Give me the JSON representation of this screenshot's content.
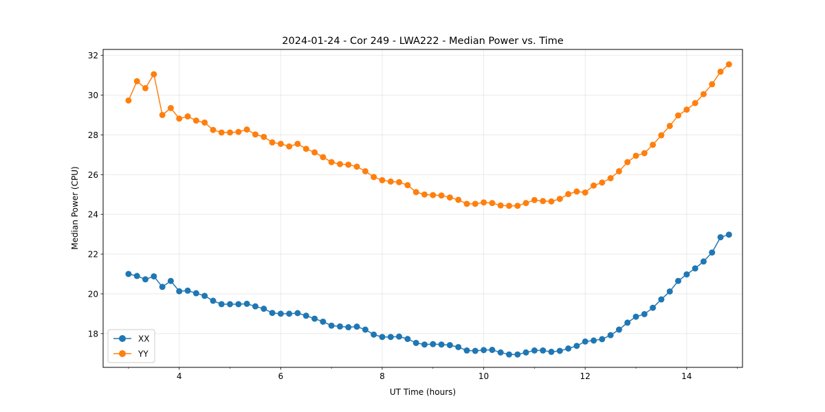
{
  "chart_data": {
    "type": "line",
    "title": "2024-01-24 - Cor 249 - LWA222 - Median Power vs. Time",
    "xlabel": "UT Time (hours)",
    "ylabel": "Median Power (CPU)",
    "xlim": [
      2.5,
      15.1
    ],
    "ylim": [
      16.3,
      32.3
    ],
    "xticks": [
      4,
      6,
      8,
      10,
      12,
      14
    ],
    "xtick_labels": [
      "4",
      "6",
      "8",
      "10",
      "12",
      "14"
    ],
    "yticks": [
      18,
      20,
      22,
      24,
      26,
      28,
      30,
      32
    ],
    "ytick_labels": [
      "18",
      "20",
      "22",
      "24",
      "26",
      "28",
      "30",
      "32"
    ],
    "grid": true,
    "legend_position": "lower-left",
    "x": [
      3.0,
      3.167,
      3.333,
      3.5,
      3.667,
      3.833,
      4.0,
      4.167,
      4.333,
      4.5,
      4.667,
      4.833,
      5.0,
      5.167,
      5.333,
      5.5,
      5.667,
      5.833,
      6.0,
      6.167,
      6.333,
      6.5,
      6.667,
      6.833,
      7.0,
      7.167,
      7.333,
      7.5,
      7.667,
      7.833,
      8.0,
      8.167,
      8.333,
      8.5,
      8.667,
      8.833,
      9.0,
      9.167,
      9.333,
      9.5,
      9.667,
      9.833,
      10.0,
      10.167,
      10.333,
      10.5,
      10.667,
      10.833,
      11.0,
      11.167,
      11.333,
      11.5,
      11.667,
      11.833,
      12.0,
      12.167,
      12.333,
      12.5,
      12.667,
      12.833,
      13.0,
      13.167,
      13.333,
      13.5,
      13.667,
      13.833,
      14.0,
      14.167,
      14.333,
      14.5,
      14.667,
      14.833
    ],
    "series": [
      {
        "name": "XX",
        "color": "#1f77b4",
        "values": [
          21.0,
          20.9,
          20.73,
          20.88,
          20.35,
          20.65,
          20.13,
          20.16,
          20.03,
          19.9,
          19.65,
          19.48,
          19.48,
          19.48,
          19.5,
          19.37,
          19.25,
          19.04,
          19.0,
          19.0,
          19.03,
          18.9,
          18.75,
          18.6,
          18.4,
          18.36,
          18.32,
          18.35,
          18.2,
          17.95,
          17.83,
          17.83,
          17.85,
          17.73,
          17.53,
          17.45,
          17.47,
          17.45,
          17.42,
          17.32,
          17.15,
          17.13,
          17.17,
          17.18,
          17.05,
          16.95,
          16.95,
          17.05,
          17.15,
          17.15,
          17.08,
          17.13,
          17.25,
          17.38,
          17.6,
          17.65,
          17.72,
          17.92,
          18.2,
          18.55,
          18.85,
          18.98,
          19.3,
          19.72,
          20.12,
          20.65,
          20.98,
          21.28,
          21.63,
          22.08,
          22.85,
          22.98
        ]
      },
      {
        "name": "YY",
        "color": "#ff7f0e",
        "values": [
          29.73,
          30.7,
          30.35,
          31.05,
          29.0,
          29.35,
          28.82,
          28.93,
          28.72,
          28.62,
          28.25,
          28.12,
          28.12,
          28.15,
          28.27,
          28.02,
          27.9,
          27.62,
          27.55,
          27.42,
          27.55,
          27.3,
          27.12,
          26.88,
          26.63,
          26.53,
          26.5,
          26.4,
          26.17,
          25.88,
          25.72,
          25.65,
          25.62,
          25.47,
          25.12,
          25.0,
          24.97,
          24.95,
          24.85,
          24.73,
          24.53,
          24.53,
          24.6,
          24.57,
          24.45,
          24.43,
          24.43,
          24.57,
          24.72,
          24.67,
          24.65,
          24.78,
          25.02,
          25.15,
          25.1,
          25.45,
          25.6,
          25.82,
          26.17,
          26.63,
          26.95,
          27.08,
          27.5,
          27.98,
          28.45,
          28.98,
          29.27,
          29.6,
          30.05,
          30.55,
          31.18,
          31.55
        ]
      }
    ]
  }
}
